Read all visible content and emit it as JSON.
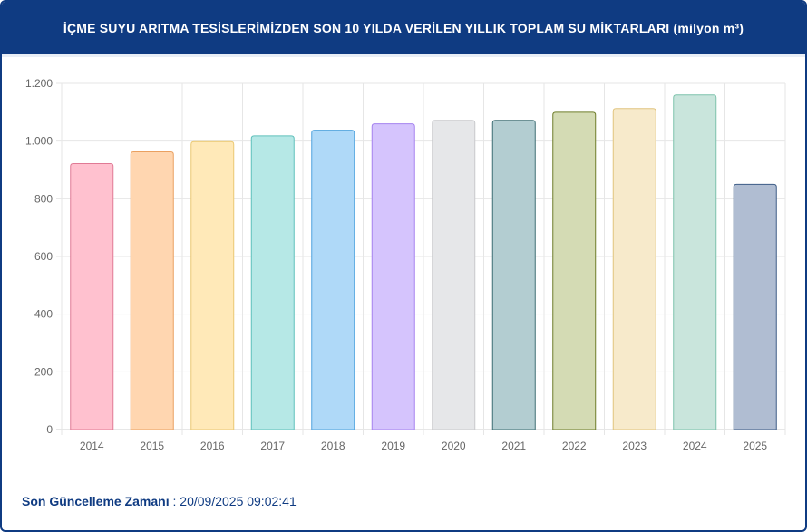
{
  "header": {
    "title": "İÇME SUYU ARITMA TESİSLERİMİZDEN SON 10 YILDA VERİLEN YILLIK TOPLAM SU MİKTARLARI (milyon m³)"
  },
  "footer": {
    "label": "Son Güncelleme Zamanı",
    "separator": " : ",
    "value": "20/09/2025 09:02:41"
  },
  "chart_data": {
    "type": "bar",
    "categories": [
      "2014",
      "2015",
      "2016",
      "2017",
      "2018",
      "2019",
      "2020",
      "2021",
      "2022",
      "2023",
      "2024",
      "2025"
    ],
    "values": [
      922,
      963,
      998,
      1018,
      1038,
      1060,
      1072,
      1072,
      1100,
      1113,
      1160,
      850
    ],
    "ylim": [
      0,
      1200
    ],
    "yticks": [
      0,
      200,
      400,
      600,
      800,
      1000,
      1200
    ],
    "ytick_labels": [
      "0",
      "200",
      "400",
      "600",
      "800",
      "1.000",
      "1.200"
    ],
    "grid": true,
    "fills": [
      "#ffc1cf",
      "#ffd6b0",
      "#ffe9b8",
      "#b6e8e6",
      "#afd9f8",
      "#d5c4fd",
      "#e6e7e9",
      "#b3cdd1",
      "#d4dbb4",
      "#f7eacb",
      "#c9e5dc",
      "#b0bdd2"
    ],
    "strokes": [
      "#e07a95",
      "#eaa060",
      "#eac873",
      "#5fc0bb",
      "#4fa2dd",
      "#a582ef",
      "#c8c9cc",
      "#3e6e74",
      "#6e7d2a",
      "#e0c47e",
      "#7cc2ab",
      "#3d5c86"
    ]
  }
}
